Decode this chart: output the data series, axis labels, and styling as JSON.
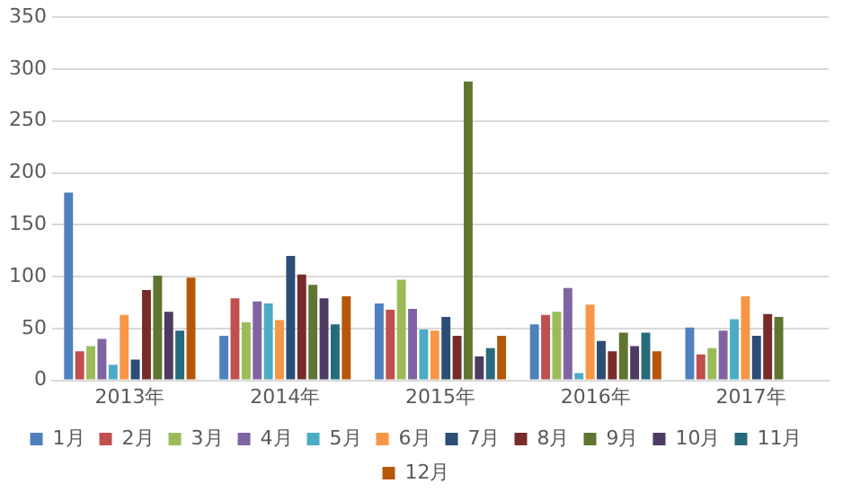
{
  "chart_data": {
    "type": "bar",
    "categories": [
      "2013年",
      "2014年",
      "2015年",
      "2016年",
      "2017年"
    ],
    "series": [
      {
        "name": "1月",
        "color": "#4f81bd",
        "values": [
          181,
          43,
          74,
          54,
          51
        ]
      },
      {
        "name": "2月",
        "color": "#c0504d",
        "values": [
          28,
          79,
          68,
          63,
          25
        ]
      },
      {
        "name": "3月",
        "color": "#9bbb59",
        "values": [
          33,
          56,
          97,
          66,
          31
        ]
      },
      {
        "name": "4月",
        "color": "#8064a2",
        "values": [
          40,
          76,
          69,
          89,
          48
        ]
      },
      {
        "name": "5月",
        "color": "#4bacc6",
        "values": [
          15,
          74,
          49,
          7,
          59
        ]
      },
      {
        "name": "6月",
        "color": "#f79646",
        "values": [
          63,
          58,
          48,
          73,
          81
        ]
      },
      {
        "name": "7月",
        "color": "#2c4d75",
        "values": [
          20,
          120,
          61,
          38,
          43
        ]
      },
      {
        "name": "8月",
        "color": "#772c2a",
        "values": [
          87,
          102,
          43,
          28,
          64
        ]
      },
      {
        "name": "9月",
        "color": "#5f7530",
        "values": [
          101,
          92,
          288,
          46,
          61
        ]
      },
      {
        "name": "10月",
        "color": "#4d3b62",
        "values": [
          66,
          79,
          23,
          33,
          null
        ]
      },
      {
        "name": "11月",
        "color": "#276a7c",
        "values": [
          48,
          54,
          31,
          46,
          null
        ]
      },
      {
        "name": "12月",
        "color": "#b65708",
        "values": [
          99,
          81,
          43,
          28,
          null
        ]
      }
    ],
    "ylim": [
      0,
      350
    ],
    "yticks": [
      0,
      50,
      100,
      150,
      200,
      250,
      300,
      350
    ],
    "grid": "y",
    "legend": "bottom"
  }
}
